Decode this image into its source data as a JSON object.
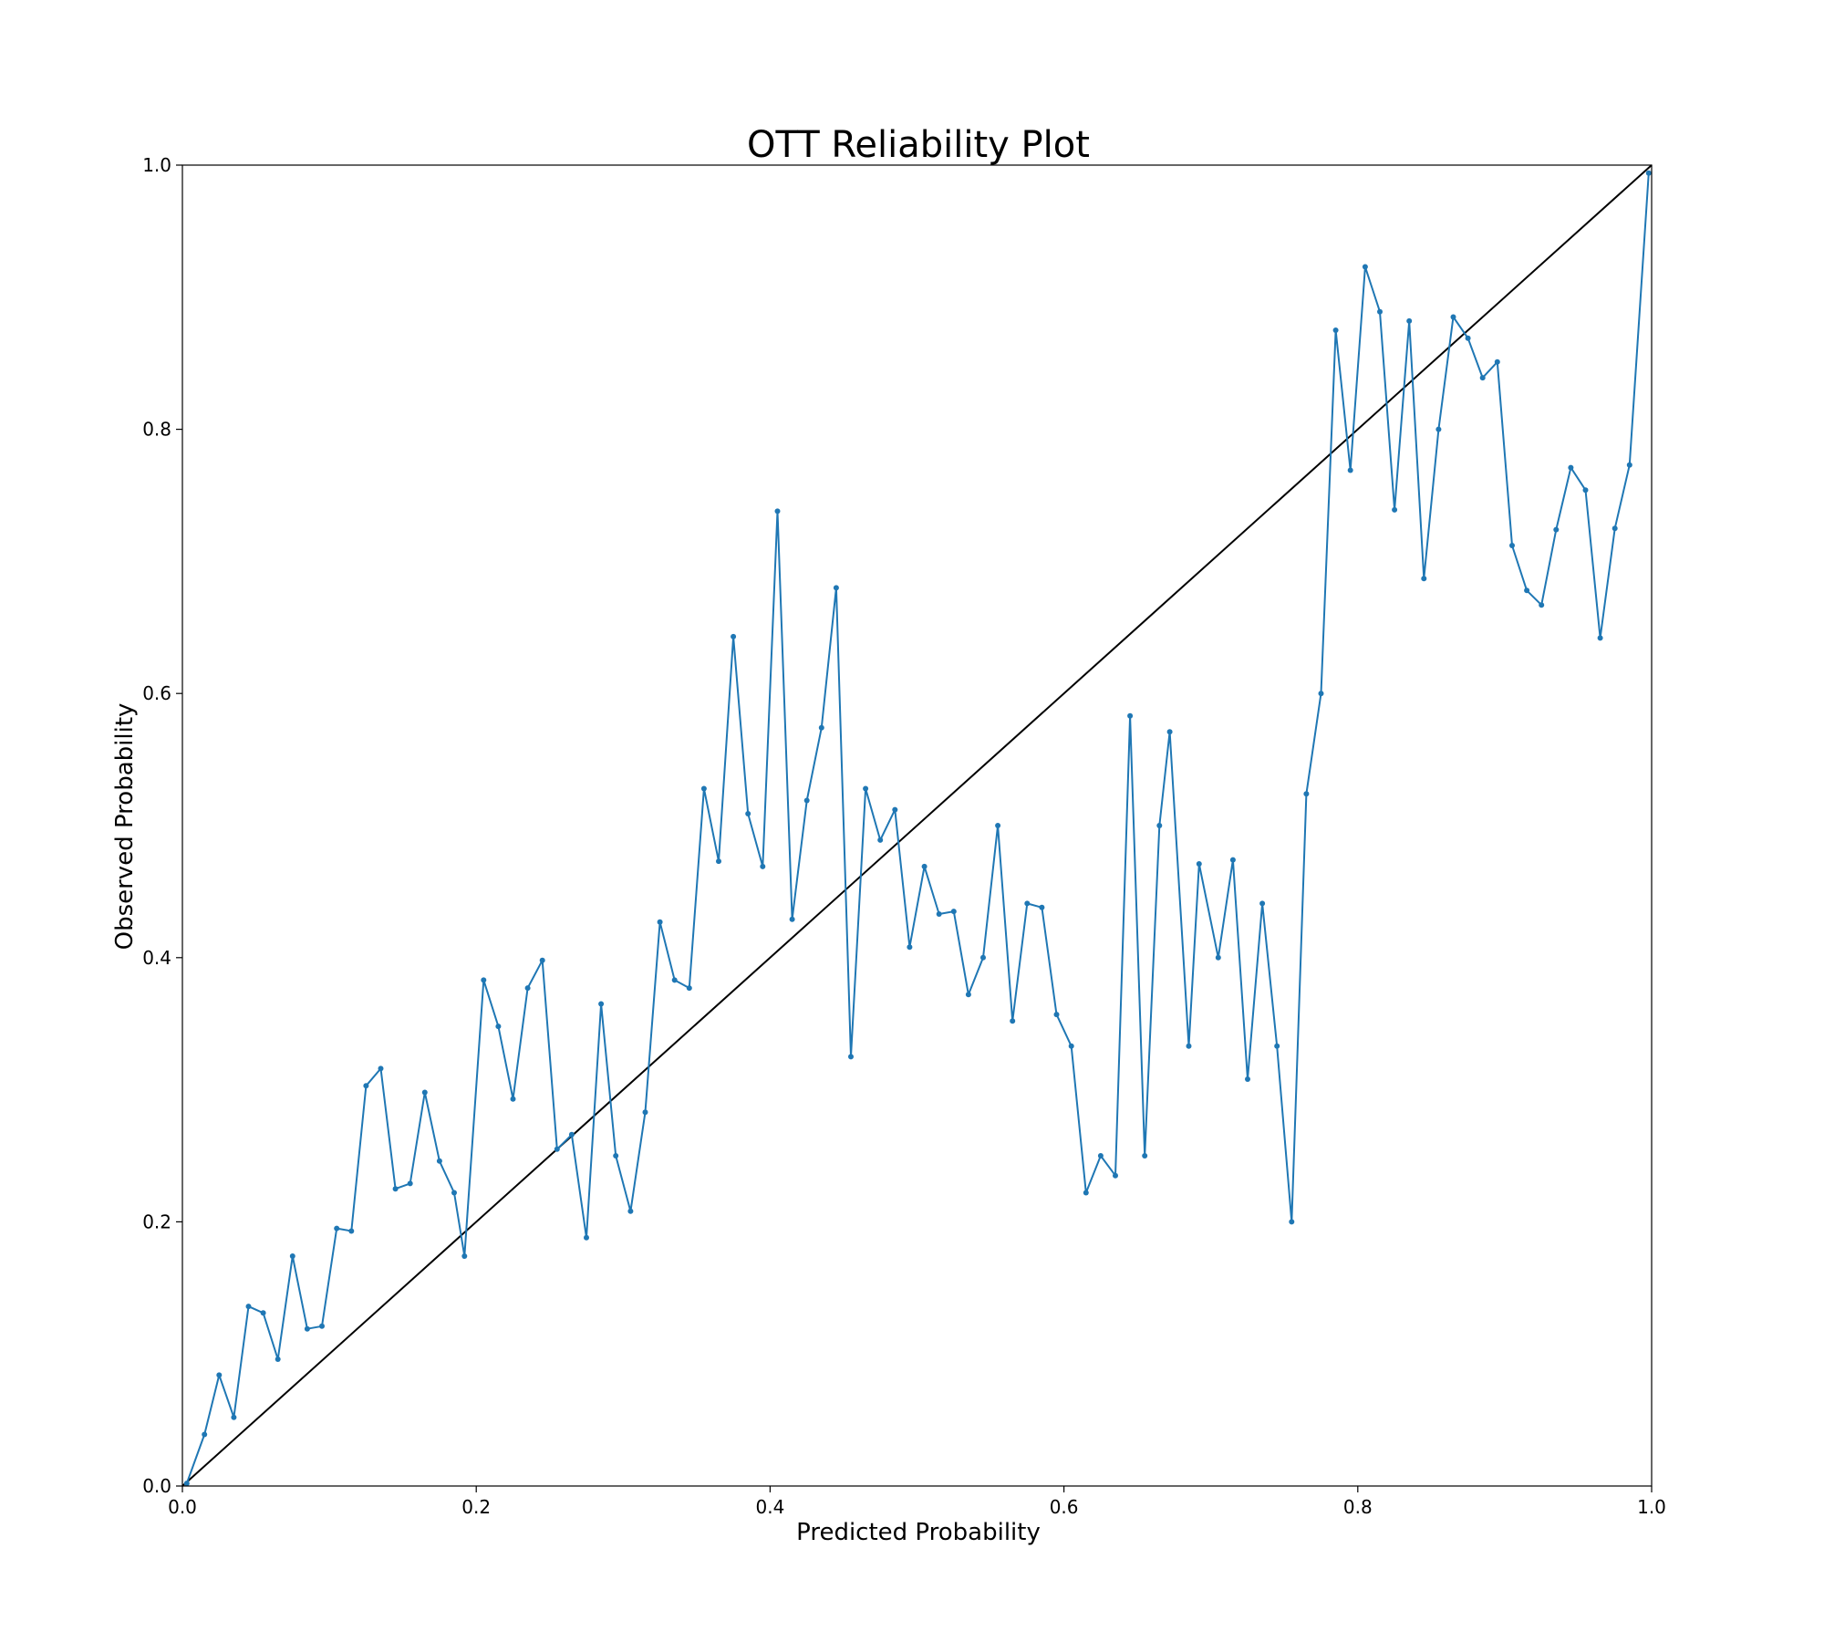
{
  "chart_data": {
    "type": "line",
    "title": "OTT Reliability Plot",
    "xlabel": "Predicted Probability",
    "ylabel": "Observed Probability",
    "xlim": [
      0.0,
      1.0
    ],
    "ylim": [
      0.0,
      1.0
    ],
    "xticks": [
      "0.0",
      "0.2",
      "0.4",
      "0.6",
      "0.8",
      "1.0"
    ],
    "yticks": [
      "0.0",
      "0.2",
      "0.4",
      "0.6",
      "0.8",
      "1.0"
    ],
    "grid": false,
    "series": [
      {
        "color": "#1f77b4",
        "marker": "dot",
        "points": [
          [
            0.003,
            0.002
          ],
          [
            0.015,
            0.039
          ],
          [
            0.025,
            0.084
          ],
          [
            0.035,
            0.052
          ],
          [
            0.045,
            0.136
          ],
          [
            0.055,
            0.131
          ],
          [
            0.065,
            0.096
          ],
          [
            0.075,
            0.174
          ],
          [
            0.085,
            0.119
          ],
          [
            0.095,
            0.121
          ],
          [
            0.105,
            0.195
          ],
          [
            0.115,
            0.193
          ],
          [
            0.125,
            0.303
          ],
          [
            0.135,
            0.316
          ],
          [
            0.145,
            0.225
          ],
          [
            0.155,
            0.229
          ],
          [
            0.165,
            0.298
          ],
          [
            0.175,
            0.246
          ],
          [
            0.185,
            0.222
          ],
          [
            0.192,
            0.174
          ],
          [
            0.205,
            0.383
          ],
          [
            0.215,
            0.348
          ],
          [
            0.225,
            0.293
          ],
          [
            0.235,
            0.377
          ],
          [
            0.245,
            0.398
          ],
          [
            0.255,
            0.255
          ],
          [
            0.265,
            0.266
          ],
          [
            0.275,
            0.188
          ],
          [
            0.285,
            0.365
          ],
          [
            0.295,
            0.25
          ],
          [
            0.305,
            0.208
          ],
          [
            0.315,
            0.283
          ],
          [
            0.325,
            0.427
          ],
          [
            0.335,
            0.383
          ],
          [
            0.345,
            0.377
          ],
          [
            0.355,
            0.528
          ],
          [
            0.365,
            0.473
          ],
          [
            0.375,
            0.643
          ],
          [
            0.385,
            0.509
          ],
          [
            0.395,
            0.469
          ],
          [
            0.405,
            0.738
          ],
          [
            0.415,
            0.429
          ],
          [
            0.425,
            0.519
          ],
          [
            0.435,
            0.574
          ],
          [
            0.445,
            0.68
          ],
          [
            0.455,
            0.325
          ],
          [
            0.465,
            0.528
          ],
          [
            0.475,
            0.489
          ],
          [
            0.485,
            0.512
          ],
          [
            0.495,
            0.408
          ],
          [
            0.505,
            0.469
          ],
          [
            0.515,
            0.433
          ],
          [
            0.525,
            0.435
          ],
          [
            0.535,
            0.372
          ],
          [
            0.545,
            0.4
          ],
          [
            0.555,
            0.5
          ],
          [
            0.565,
            0.352
          ],
          [
            0.575,
            0.441
          ],
          [
            0.585,
            0.438
          ],
          [
            0.595,
            0.357
          ],
          [
            0.605,
            0.333
          ],
          [
            0.615,
            0.222
          ],
          [
            0.625,
            0.25
          ],
          [
            0.635,
            0.235
          ],
          [
            0.645,
            0.583
          ],
          [
            0.655,
            0.25
          ],
          [
            0.665,
            0.5
          ],
          [
            0.672,
            0.571
          ],
          [
            0.685,
            0.333
          ],
          [
            0.692,
            0.471
          ],
          [
            0.705,
            0.4
          ],
          [
            0.715,
            0.474
          ],
          [
            0.725,
            0.308
          ],
          [
            0.735,
            0.441
          ],
          [
            0.745,
            0.333
          ],
          [
            0.755,
            0.2
          ],
          [
            0.765,
            0.524
          ],
          [
            0.775,
            0.6
          ],
          [
            0.785,
            0.875
          ],
          [
            0.795,
            0.769
          ],
          [
            0.805,
            0.923
          ],
          [
            0.815,
            0.889
          ],
          [
            0.825,
            0.739
          ],
          [
            0.835,
            0.882
          ],
          [
            0.845,
            0.687
          ],
          [
            0.855,
            0.8
          ],
          [
            0.865,
            0.885
          ],
          [
            0.875,
            0.869
          ],
          [
            0.885,
            0.839
          ],
          [
            0.895,
            0.851
          ],
          [
            0.905,
            0.712
          ],
          [
            0.915,
            0.678
          ],
          [
            0.925,
            0.667
          ],
          [
            0.935,
            0.724
          ],
          [
            0.945,
            0.771
          ],
          [
            0.955,
            0.754
          ],
          [
            0.965,
            0.642
          ],
          [
            0.975,
            0.725
          ],
          [
            0.985,
            0.773
          ],
          [
            0.998,
            0.994
          ]
        ]
      },
      {
        "color": "#000000",
        "marker": "none",
        "points": [
          [
            0.0,
            0.0
          ],
          [
            1.0,
            1.0
          ]
        ]
      }
    ]
  }
}
